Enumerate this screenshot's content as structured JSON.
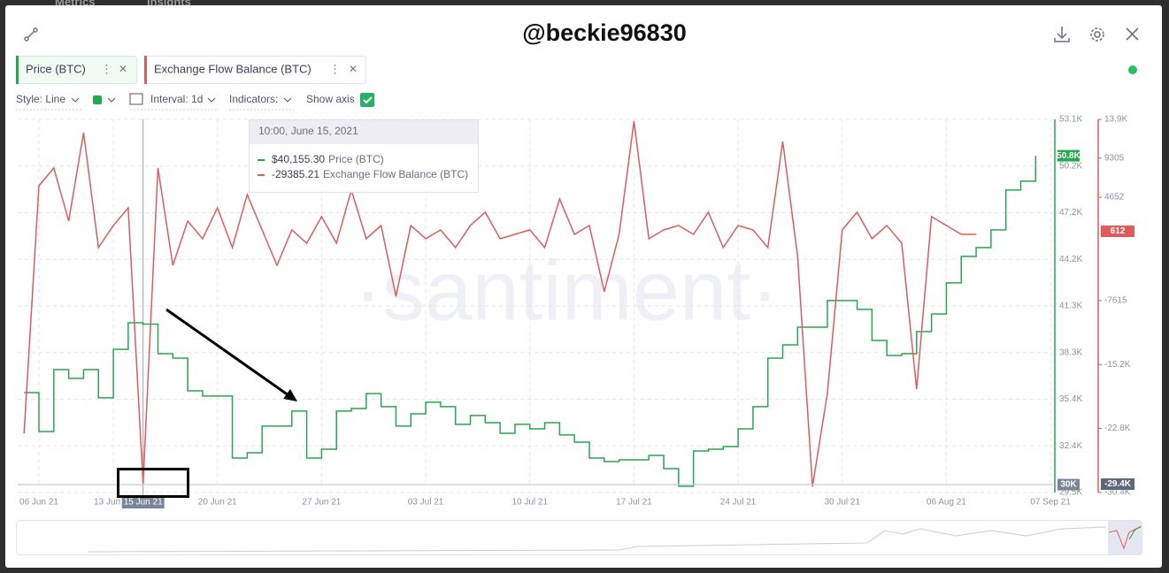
{
  "nav": {
    "tabs": [
      "Metrics",
      "Insights"
    ]
  },
  "header": {
    "title": "@beckie96830"
  },
  "metric_tabs": [
    "Price (BTC)",
    "Exchange Flow Balance (BTC)"
  ],
  "toolbar": {
    "style": "Style: Line",
    "interval": "Interval: 1d",
    "indicators": "Indicators:",
    "show_axis": "Show axis"
  },
  "chart_data": {
    "type": "line",
    "watermark": "·santiment·",
    "categories": [
      null,
      "06 Jun 21",
      null,
      null,
      null,
      null,
      "13 Jun 21",
      null,
      "15 Jun 21",
      null,
      null,
      null,
      null,
      "20 Jun 21",
      null,
      null,
      null,
      null,
      null,
      null,
      "27 Jun 21",
      null,
      null,
      null,
      null,
      null,
      null,
      "03 Jul 21",
      null,
      null,
      null,
      null,
      null,
      null,
      "10 Jul 21",
      null,
      null,
      null,
      null,
      null,
      null,
      "17 Jul 21",
      null,
      null,
      null,
      null,
      null,
      null,
      "24 Jul 21",
      null,
      null,
      null,
      null,
      null,
      null,
      "30 Jul 21",
      null,
      null,
      null,
      null,
      null,
      null,
      "06 Aug 21",
      null,
      null,
      null,
      null,
      null,
      null,
      "07 Sep 21"
    ],
    "series": [
      {
        "name": "Price (BTC)",
        "color": "#26a94d",
        "step": true,
        "values": [
          35820,
          33360,
          37270,
          36720,
          37270,
          35490,
          38560,
          40240,
          40155.3,
          38280,
          38000,
          35930,
          35600,
          35600,
          31680,
          32020,
          33700,
          33700,
          34650,
          31680,
          32240,
          34650,
          34810,
          35760,
          34930,
          33700,
          34480,
          35210,
          34930,
          33810,
          34370,
          33920,
          33250,
          33810,
          33530,
          33920,
          33140,
          32690,
          31680,
          31460,
          31570,
          31570,
          31850,
          31010,
          29900,
          32130,
          32240,
          32410,
          33530,
          34930,
          38000,
          38840,
          39960,
          39960,
          41640,
          41640,
          41080,
          39120,
          38170,
          38280,
          39680,
          40800,
          42760,
          44430,
          44990,
          46110,
          48630,
          49190,
          50800,
          null
        ]
      },
      {
        "name": "Exchange Flow Balance (BTC)",
        "color": "#e05c5c",
        "axis": "y2",
        "values": [
          -23370,
          6030,
          8130,
          1830,
          12330,
          -1320,
          1300,
          3400,
          -29385.21,
          8130,
          -3420,
          1830,
          -270,
          3400,
          -1320,
          4980,
          780,
          -3420,
          780,
          -800,
          2350,
          -800,
          5500,
          -270,
          1300,
          -7100,
          1300,
          -270,
          780,
          -1320,
          1300,
          2880,
          -270,
          250,
          780,
          -1320,
          4450,
          250,
          1300,
          -6570,
          250,
          13690,
          -270,
          780,
          1300,
          250,
          2880,
          -1320,
          1300,
          780,
          -1320,
          11280,
          -2370,
          -29700,
          -18640,
          780,
          2880,
          -270,
          1300,
          -800,
          -18120,
          2350,
          1300,
          250,
          250,
          null,
          null,
          null,
          null,
          null
        ]
      }
    ],
    "ylim": [
      29500,
      53100
    ],
    "yticks": [
      {
        "value": 29500,
        "label": "29.5K"
      },
      {
        "value": 32450,
        "label": "32.4K"
      },
      {
        "value": 35400,
        "label": "35.4K"
      },
      {
        "value": 38350,
        "label": "38.3K"
      },
      {
        "value": 41300,
        "label": "41.3K"
      },
      {
        "value": 44250,
        "label": "44.2K"
      },
      {
        "value": 47200,
        "label": "47.2K"
      },
      {
        "value": 50150,
        "label": "50.2K"
      },
      {
        "value": 53100,
        "label": "53.1K"
      }
    ],
    "y2lim": [
      -30400,
      13900
    ],
    "y2ticks": [
      {
        "value": -30400,
        "label": "-30.4K"
      },
      {
        "value": -22800,
        "label": "-22.8K"
      },
      {
        "value": -15200,
        "label": "-15.2K"
      },
      -7615,
      4652,
      9305,
      {
        "value": 13900,
        "label": "13.9K"
      }
    ],
    "grid": true,
    "badges": [
      {
        "value": 50800,
        "label": "50.8K",
        "axis": "y",
        "color": "#26a94d"
      },
      {
        "value": 612,
        "label": "612",
        "axis": "y2",
        "color": "#e05c5c"
      },
      {
        "value": 30000,
        "label": "30K",
        "axis": "y",
        "color": "#7c8595"
      },
      {
        "value": -29400,
        "label": "-29.4K",
        "axis": "y2",
        "color": "#5f6878"
      }
    ],
    "tooltip": {
      "title": "10:00, June 15, 2021",
      "labels": [
        "$40,155.30",
        "-29385.21"
      ]
    }
  }
}
